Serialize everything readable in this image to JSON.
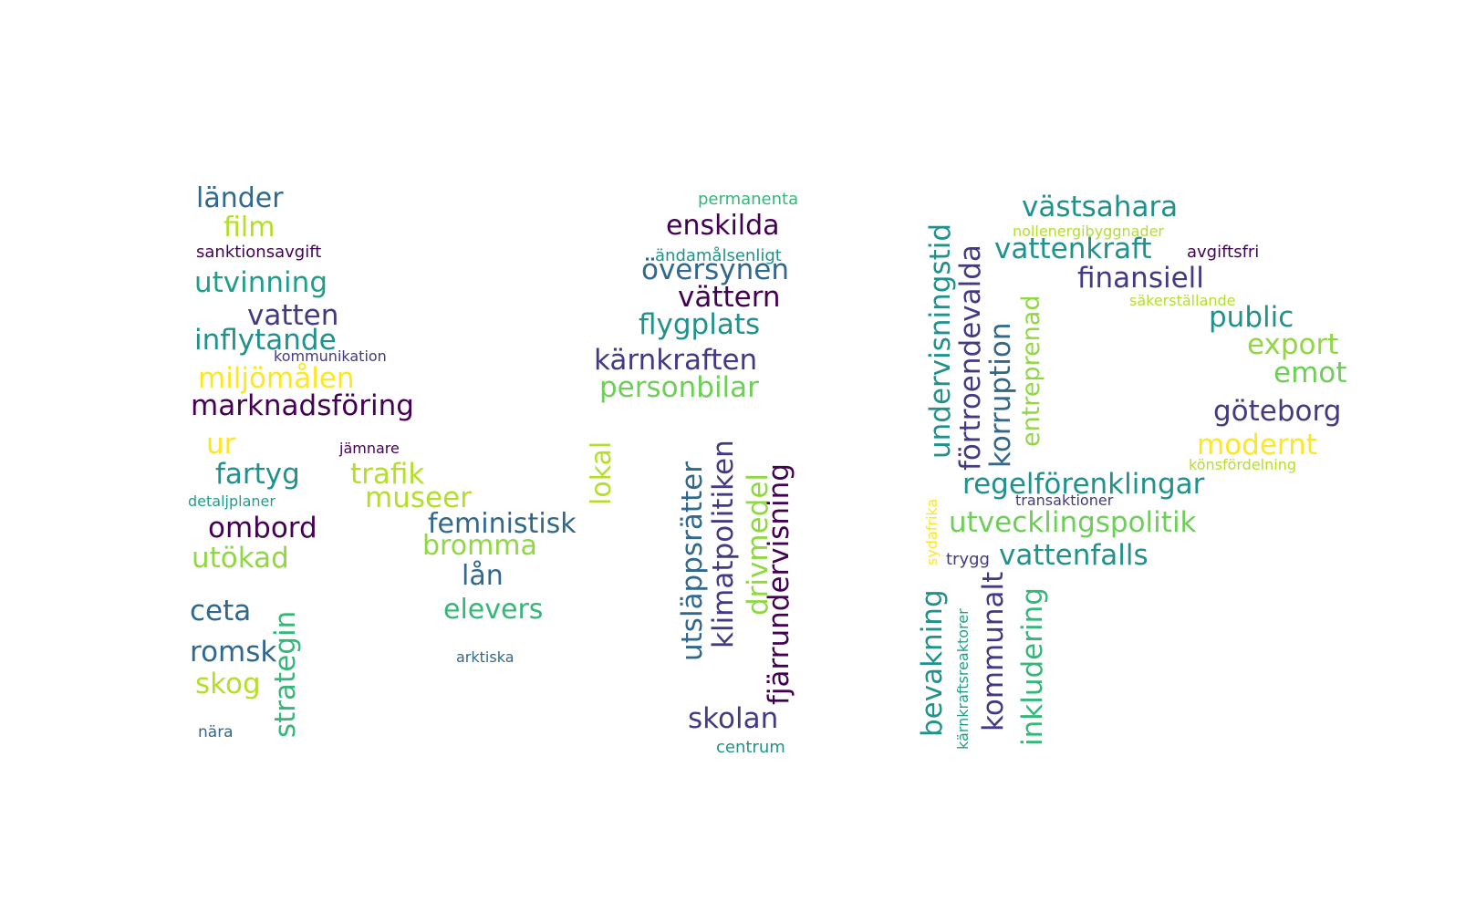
{
  "palette": {
    "c1": "#440154",
    "c2": "#443983",
    "c3": "#31688e",
    "c4": "#21918c",
    "c5": "#1f9e89",
    "c6": "#35b779",
    "c7": "#6ece58",
    "c8": "#90d743",
    "c9": "#b5de2b",
    "c10": "#fde725"
  },
  "words": [
    {
      "id": "lander",
      "text": "länder",
      "color": "c3"
    },
    {
      "id": "film",
      "text": "film",
      "color": "c9"
    },
    {
      "id": "sanktionsavgift",
      "text": "sanktionsavgift",
      "color": "c1"
    },
    {
      "id": "utvinning",
      "text": "utvinning",
      "color": "c5"
    },
    {
      "id": "vatten",
      "text": "vatten",
      "color": "c2"
    },
    {
      "id": "inflytande",
      "text": "inflytande",
      "color": "c4"
    },
    {
      "id": "kommunikation",
      "text": "kommunikation",
      "color": "c2"
    },
    {
      "id": "miljomalen",
      "text": "miljömålen",
      "color": "c10"
    },
    {
      "id": "marknadsforing",
      "text": "marknadsföring",
      "color": "c1"
    },
    {
      "id": "ur",
      "text": "ur",
      "color": "c10"
    },
    {
      "id": "jamnare",
      "text": "jämnare",
      "color": "c1"
    },
    {
      "id": "fartyg",
      "text": "fartyg",
      "color": "c4"
    },
    {
      "id": "trafik",
      "text": "trafik",
      "color": "c9"
    },
    {
      "id": "museer",
      "text": "museer",
      "color": "c9"
    },
    {
      "id": "detaljplaner",
      "text": "detaljplaner",
      "color": "c5"
    },
    {
      "id": "ombord",
      "text": "ombord",
      "color": "c1"
    },
    {
      "id": "utokad",
      "text": "utökad",
      "color": "c8"
    },
    {
      "id": "ceta",
      "text": "ceta",
      "color": "c3"
    },
    {
      "id": "strategin",
      "text": "strategin",
      "color": "c6"
    },
    {
      "id": "romsk",
      "text": "romsk",
      "color": "c3"
    },
    {
      "id": "skog",
      "text": "skog",
      "color": "c9"
    },
    {
      "id": "nara",
      "text": "nära",
      "color": "c3"
    },
    {
      "id": "feministisk",
      "text": "feministisk",
      "color": "c3"
    },
    {
      "id": "bromma",
      "text": "bromma",
      "color": "c8"
    },
    {
      "id": "lan",
      "text": "lån",
      "color": "c3"
    },
    {
      "id": "elevers",
      "text": "elevers",
      "color": "c6"
    },
    {
      "id": "arktiska",
      "text": "arktiska",
      "color": "c3"
    },
    {
      "id": "permanenta",
      "text": "permanenta",
      "color": "c6"
    },
    {
      "id": "enskilda",
      "text": "enskilda",
      "color": "c1"
    },
    {
      "id": "andamalsenligt",
      "text": "ändamålsenligt",
      "color": "c4"
    },
    {
      "id": "oversynen",
      "text": "översynen",
      "color": "c3"
    },
    {
      "id": "vattern",
      "text": "vättern",
      "color": "c1"
    },
    {
      "id": "flygplats",
      "text": "flygplats",
      "color": "c4"
    },
    {
      "id": "karnkraften",
      "text": "kärnkraften",
      "color": "c2"
    },
    {
      "id": "personbilar",
      "text": "personbilar",
      "color": "c7"
    },
    {
      "id": "lokal",
      "text": "lokal",
      "color": "c9"
    },
    {
      "id": "utslappsratter",
      "text": "utsläppsrätter",
      "color": "c3"
    },
    {
      "id": "klimatpolitiken",
      "text": "klimatpolitiken",
      "color": "c2"
    },
    {
      "id": "drivmedel",
      "text": "drivmedel",
      "color": "c8"
    },
    {
      "id": "fjarrundervisning",
      "text": "fjärrundervisning",
      "color": "c1"
    },
    {
      "id": "skolan",
      "text": "skolan",
      "color": "c2"
    },
    {
      "id": "centrum",
      "text": "centrum",
      "color": "c4"
    },
    {
      "id": "vastsahara",
      "text": "västsahara",
      "color": "c4"
    },
    {
      "id": "nollenergibyggnader",
      "text": "nollenergibyggnader",
      "color": "c9"
    },
    {
      "id": "vattenkraft",
      "text": "vattenkraft",
      "color": "c4"
    },
    {
      "id": "avgiftsfri",
      "text": "avgiftsfri",
      "color": "c1"
    },
    {
      "id": "finansiell",
      "text": "finansiell",
      "color": "c2"
    },
    {
      "id": "sakerstallande",
      "text": "säkerställande",
      "color": "c9"
    },
    {
      "id": "public",
      "text": "public",
      "color": "c4"
    },
    {
      "id": "export",
      "text": "export",
      "color": "c8"
    },
    {
      "id": "emot",
      "text": "emot",
      "color": "c7"
    },
    {
      "id": "goteborg",
      "text": "göteborg",
      "color": "c2"
    },
    {
      "id": "modernt",
      "text": "modernt",
      "color": "c10"
    },
    {
      "id": "konsfordelning",
      "text": "könsfördelning",
      "color": "c9"
    },
    {
      "id": "regelforenklingar",
      "text": "regelförenklingar",
      "color": "c4"
    },
    {
      "id": "transaktioner",
      "text": "transaktioner",
      "color": "c2"
    },
    {
      "id": "utvecklingspolitik",
      "text": "utvecklingspolitik",
      "color": "c7"
    },
    {
      "id": "trygg",
      "text": "trygg",
      "color": "c2"
    },
    {
      "id": "vattenfalls",
      "text": "vattenfalls",
      "color": "c4"
    },
    {
      "id": "undervisningstid",
      "text": "undervisningstid",
      "color": "c4"
    },
    {
      "id": "fortroendevalda",
      "text": "förtroendevalda",
      "color": "c2"
    },
    {
      "id": "korruption",
      "text": "korruption",
      "color": "c3"
    },
    {
      "id": "entreprenad",
      "text": "entreprenad",
      "color": "c8"
    },
    {
      "id": "sydafrika",
      "text": "sydafrika",
      "color": "c10"
    },
    {
      "id": "bevakning",
      "text": "bevakning",
      "color": "c4"
    },
    {
      "id": "karnkraftsreaktorer",
      "text": "kärnkraftsreaktorer",
      "color": "c5"
    },
    {
      "id": "kommunalt",
      "text": "kommunalt",
      "color": "c2"
    },
    {
      "id": "inkludering",
      "text": "inkludering",
      "color": "c6"
    }
  ]
}
